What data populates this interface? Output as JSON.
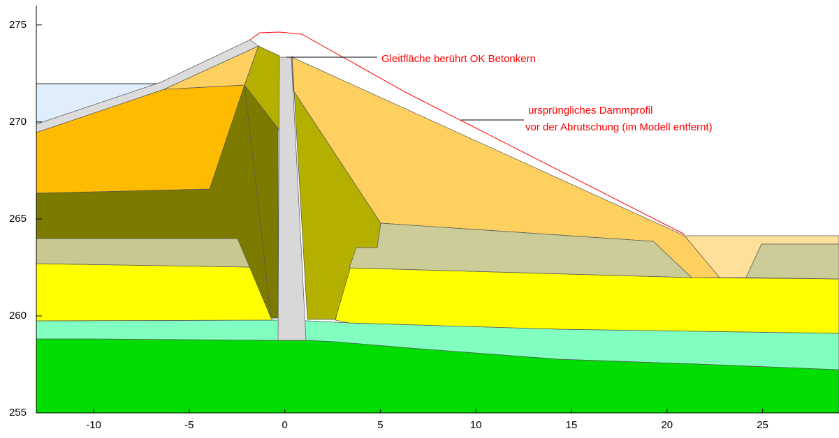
{
  "axes": {
    "xlim": [
      -13,
      29
    ],
    "ylim": [
      255,
      276
    ],
    "xticks": [
      -10,
      -5,
      0,
      5,
      10,
      15,
      20,
      25
    ],
    "yticks": [
      255,
      260,
      265,
      270,
      275
    ]
  },
  "annotations": {
    "slip_surface": "Gleitfläche berührt OK Betonkern",
    "original_profile": [
      "ursprüngliches Dammprofil",
      "vor der Abrutschung (im Modell entfernt)"
    ]
  }
}
